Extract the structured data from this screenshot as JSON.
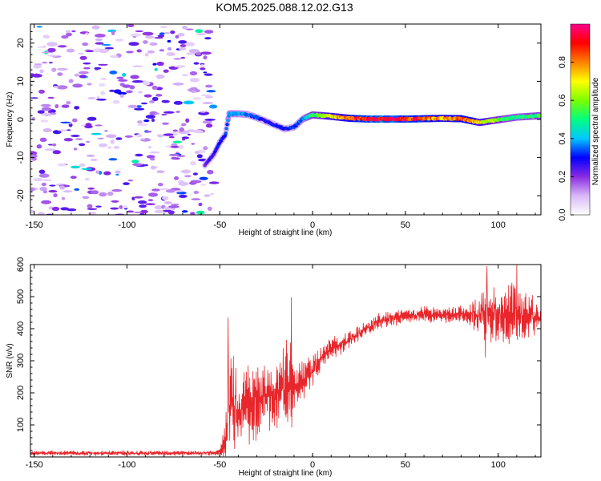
{
  "title": "KOM5.2025.088.12.02.G13",
  "chart_data": [
    {
      "type": "heatmap",
      "xlabel": "Height of straight line (km)",
      "ylabel": "Frequency (Hz)",
      "xlim": [
        -152,
        123
      ],
      "ylim": [
        -25,
        25
      ],
      "xticks": [
        -150,
        -100,
        -50,
        0,
        50,
        100
      ],
      "yticks": [
        -20,
        -10,
        0,
        10,
        20
      ],
      "colorbar": {
        "label": "Normalized spectral amplitude",
        "range": [
          0,
          1
        ],
        "ticks": [
          "0.0",
          "0.2",
          "0.4",
          "0.6",
          "0.8"
        ],
        "colors": [
          "#ffffff",
          "#d8b8f8",
          "#8a2be2",
          "#0000ff",
          "#00c8ff",
          "#00ff80",
          "#7cff00",
          "#ffff00",
          "#ff8000",
          "#ff0000",
          "#ff0088"
        ]
      },
      "noise_region_x": [
        -152,
        -53
      ],
      "noise_amplitude": 0.2,
      "ridge": {
        "x": [
          -58,
          -53,
          -50,
          -47,
          -45,
          -40,
          -35,
          -30,
          -25,
          -20,
          -15,
          -10,
          -5,
          0,
          10,
          20,
          30,
          40,
          50,
          60,
          70,
          80,
          90,
          100,
          110,
          123
        ],
        "freq": [
          -12,
          -9,
          -6,
          -4,
          1.5,
          1.5,
          1.3,
          0.5,
          -0.5,
          -1.5,
          -2.5,
          -2,
          0.2,
          1.2,
          0.8,
          0.3,
          0.1,
          0.1,
          0.1,
          0.2,
          0.3,
          0.2,
          -0.8,
          -0.1,
          0.6,
          1
        ],
        "amplitude": [
          0.22,
          0.28,
          0.32,
          0.3,
          0.4,
          0.38,
          0.36,
          0.34,
          0.3,
          0.3,
          0.3,
          0.32,
          0.38,
          0.55,
          0.7,
          0.85,
          0.95,
          0.98,
          0.92,
          0.88,
          0.75,
          0.85,
          0.72,
          0.6,
          0.5,
          0.55
        ]
      }
    },
    {
      "type": "line",
      "xlabel": "Height of straight line (km)",
      "ylabel": "SNR (v/v)",
      "xlim": [
        -152,
        123
      ],
      "ylim": [
        0,
        600
      ],
      "xticks": [
        -150,
        -100,
        -50,
        0,
        50,
        100
      ],
      "yticks": [
        100,
        200,
        300,
        400,
        500,
        600
      ],
      "series": [
        {
          "color": "#e8262b",
          "envelope": {
            "x": [
              -152,
              -55,
              -50,
              -47,
              -45,
              -43,
              -40,
              -35,
              -30,
              -25,
              -20,
              -15,
              -12,
              -10,
              -5,
              0,
              5,
              10,
              15,
              20,
              25,
              30,
              35,
              40,
              50,
              60,
              70,
              80,
              85,
              90,
              95,
              100,
              105,
              110,
              115,
              123
            ],
            "center": [
              12,
              12,
              15,
              60,
              150,
              180,
              130,
              160,
              170,
              200,
              190,
              220,
              240,
              220,
              240,
              270,
              310,
              340,
              350,
              365,
              385,
              405,
              420,
              430,
              440,
              445,
              440,
              445,
              445,
              445,
              450,
              450,
              445,
              450,
              440,
              440
            ],
            "spread": [
              8,
              8,
              10,
              60,
              140,
              160,
              110,
              120,
              120,
              110,
              110,
              120,
              160,
              100,
              60,
              50,
              40,
              35,
              30,
              30,
              25,
              25,
              25,
              25,
              25,
              25,
              25,
              30,
              40,
              60,
              110,
              90,
              90,
              110,
              70,
              50
            ]
          },
          "peaks": [
            {
              "x": -45.5,
              "y": 435
            },
            {
              "x": -11.5,
              "y": 498
            },
            {
              "x": 94,
              "y": 595
            },
            {
              "x": 110,
              "y": 605
            },
            {
              "x": 93,
              "y": 310
            },
            {
              "x": -42,
              "y": 25
            }
          ]
        }
      ]
    }
  ]
}
